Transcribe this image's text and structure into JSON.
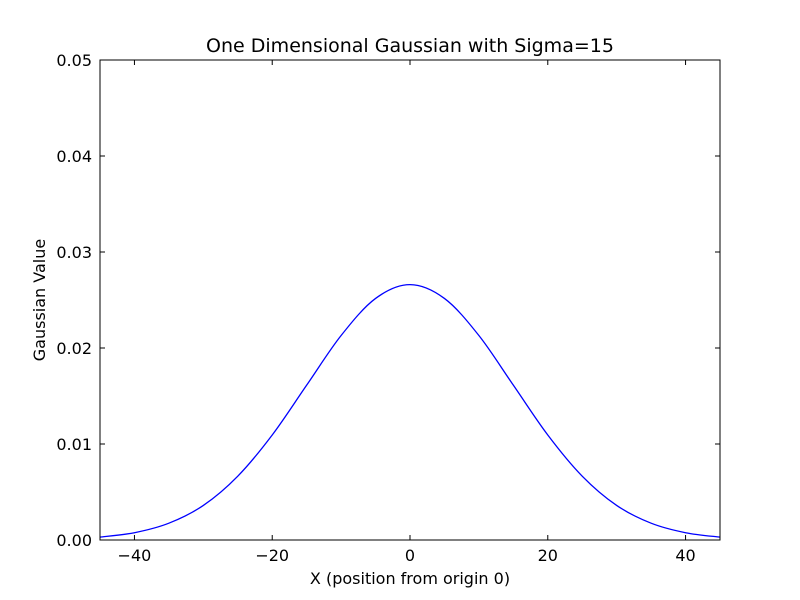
{
  "chart_data": {
    "type": "line",
    "title": "One Dimensional Gaussian with Sigma=15",
    "xlabel": "X (position from origin 0)",
    "ylabel": "Gaussian Value",
    "xlim": [
      -45,
      45
    ],
    "ylim": [
      0,
      0.05
    ],
    "grid": false,
    "x_ticks": [
      -40,
      -20,
      0,
      20,
      40
    ],
    "x_tick_labels": [
      "−40",
      "−20",
      "0",
      "20",
      "40"
    ],
    "y_ticks": [
      0,
      0.01,
      0.02,
      0.03,
      0.04,
      0.05
    ],
    "y_tick_labels": [
      "0.00",
      "0.01",
      "0.02",
      "0.03",
      "0.04",
      "0.05"
    ],
    "series": [
      {
        "color": "#0000ff",
        "x": [
          -45,
          -40,
          -35,
          -30,
          -25,
          -20,
          -15,
          -10,
          -5,
          0,
          5,
          10,
          15,
          20,
          25,
          30,
          35,
          40,
          45
        ],
        "values": [
          0.0003,
          0.00076,
          0.00175,
          0.0036,
          0.00665,
          0.01094,
          0.01613,
          0.0213,
          0.02516,
          0.0266,
          0.02516,
          0.0213,
          0.01613,
          0.01094,
          0.00665,
          0.0036,
          0.00175,
          0.00076,
          0.0003
        ]
      }
    ]
  }
}
